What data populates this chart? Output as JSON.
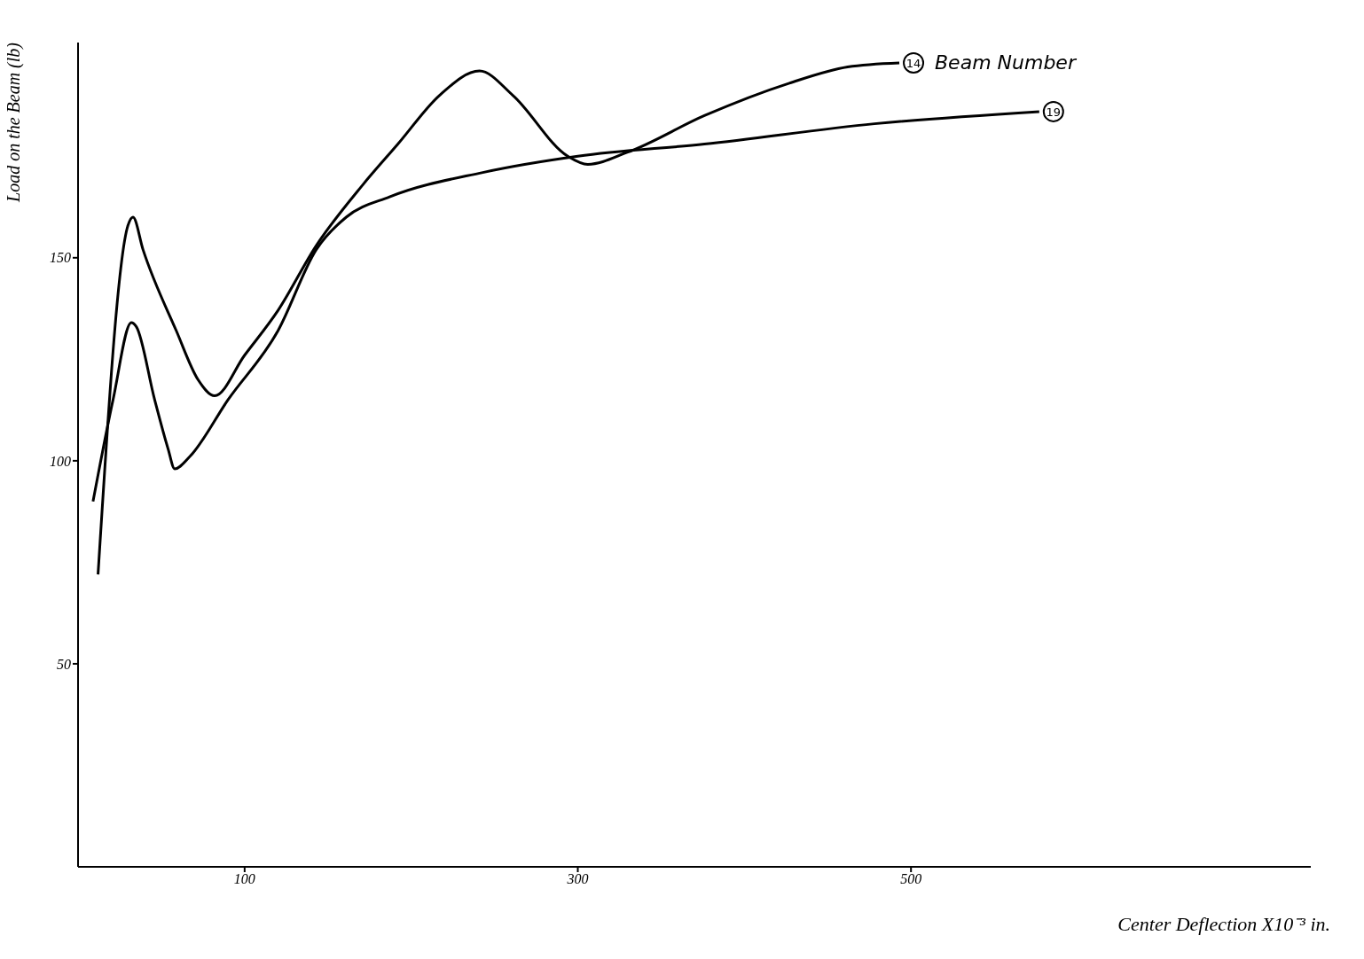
{
  "chart_data": {
    "type": "line",
    "xlabel": "Center Deflection X10⁻³ in.",
    "ylabel": "Load on the Beam (lb)",
    "xlim": [
      0,
      740
    ],
    "ylim": [
      0,
      203
    ],
    "xticks": [
      100,
      300,
      500
    ],
    "yticks": [
      50,
      100,
      150
    ],
    "marker": "none",
    "line_style": "solid",
    "annotations": [
      {
        "text": "Beam Number",
        "x": 493,
        "y": 198
      }
    ],
    "series": [
      {
        "name": "14",
        "color": "#000000",
        "x": [
          12,
          30,
          33,
          39,
          59,
          72,
          82,
          100,
          120,
          143,
          171,
          192,
          217,
          241,
          261,
          294,
          306,
          330,
          376,
          427,
          462,
          493
        ],
        "values": [
          72,
          158,
          160,
          152,
          132,
          120,
          116,
          126,
          137,
          153,
          168,
          178,
          190,
          196,
          190,
          175,
          173,
          176,
          185,
          193,
          197,
          198
        ]
      },
      {
        "name": "19",
        "color": "#000000",
        "x": [
          9,
          21,
          32,
          35,
          46,
          54,
          58,
          67,
          90,
          120,
          143,
          161,
          187,
          243,
          300,
          376,
          478,
          577
        ],
        "values": [
          90,
          115,
          134,
          133,
          115,
          103,
          98,
          101,
          115,
          132,
          152,
          160,
          165,
          171,
          175,
          178,
          183,
          186
        ]
      }
    ]
  }
}
